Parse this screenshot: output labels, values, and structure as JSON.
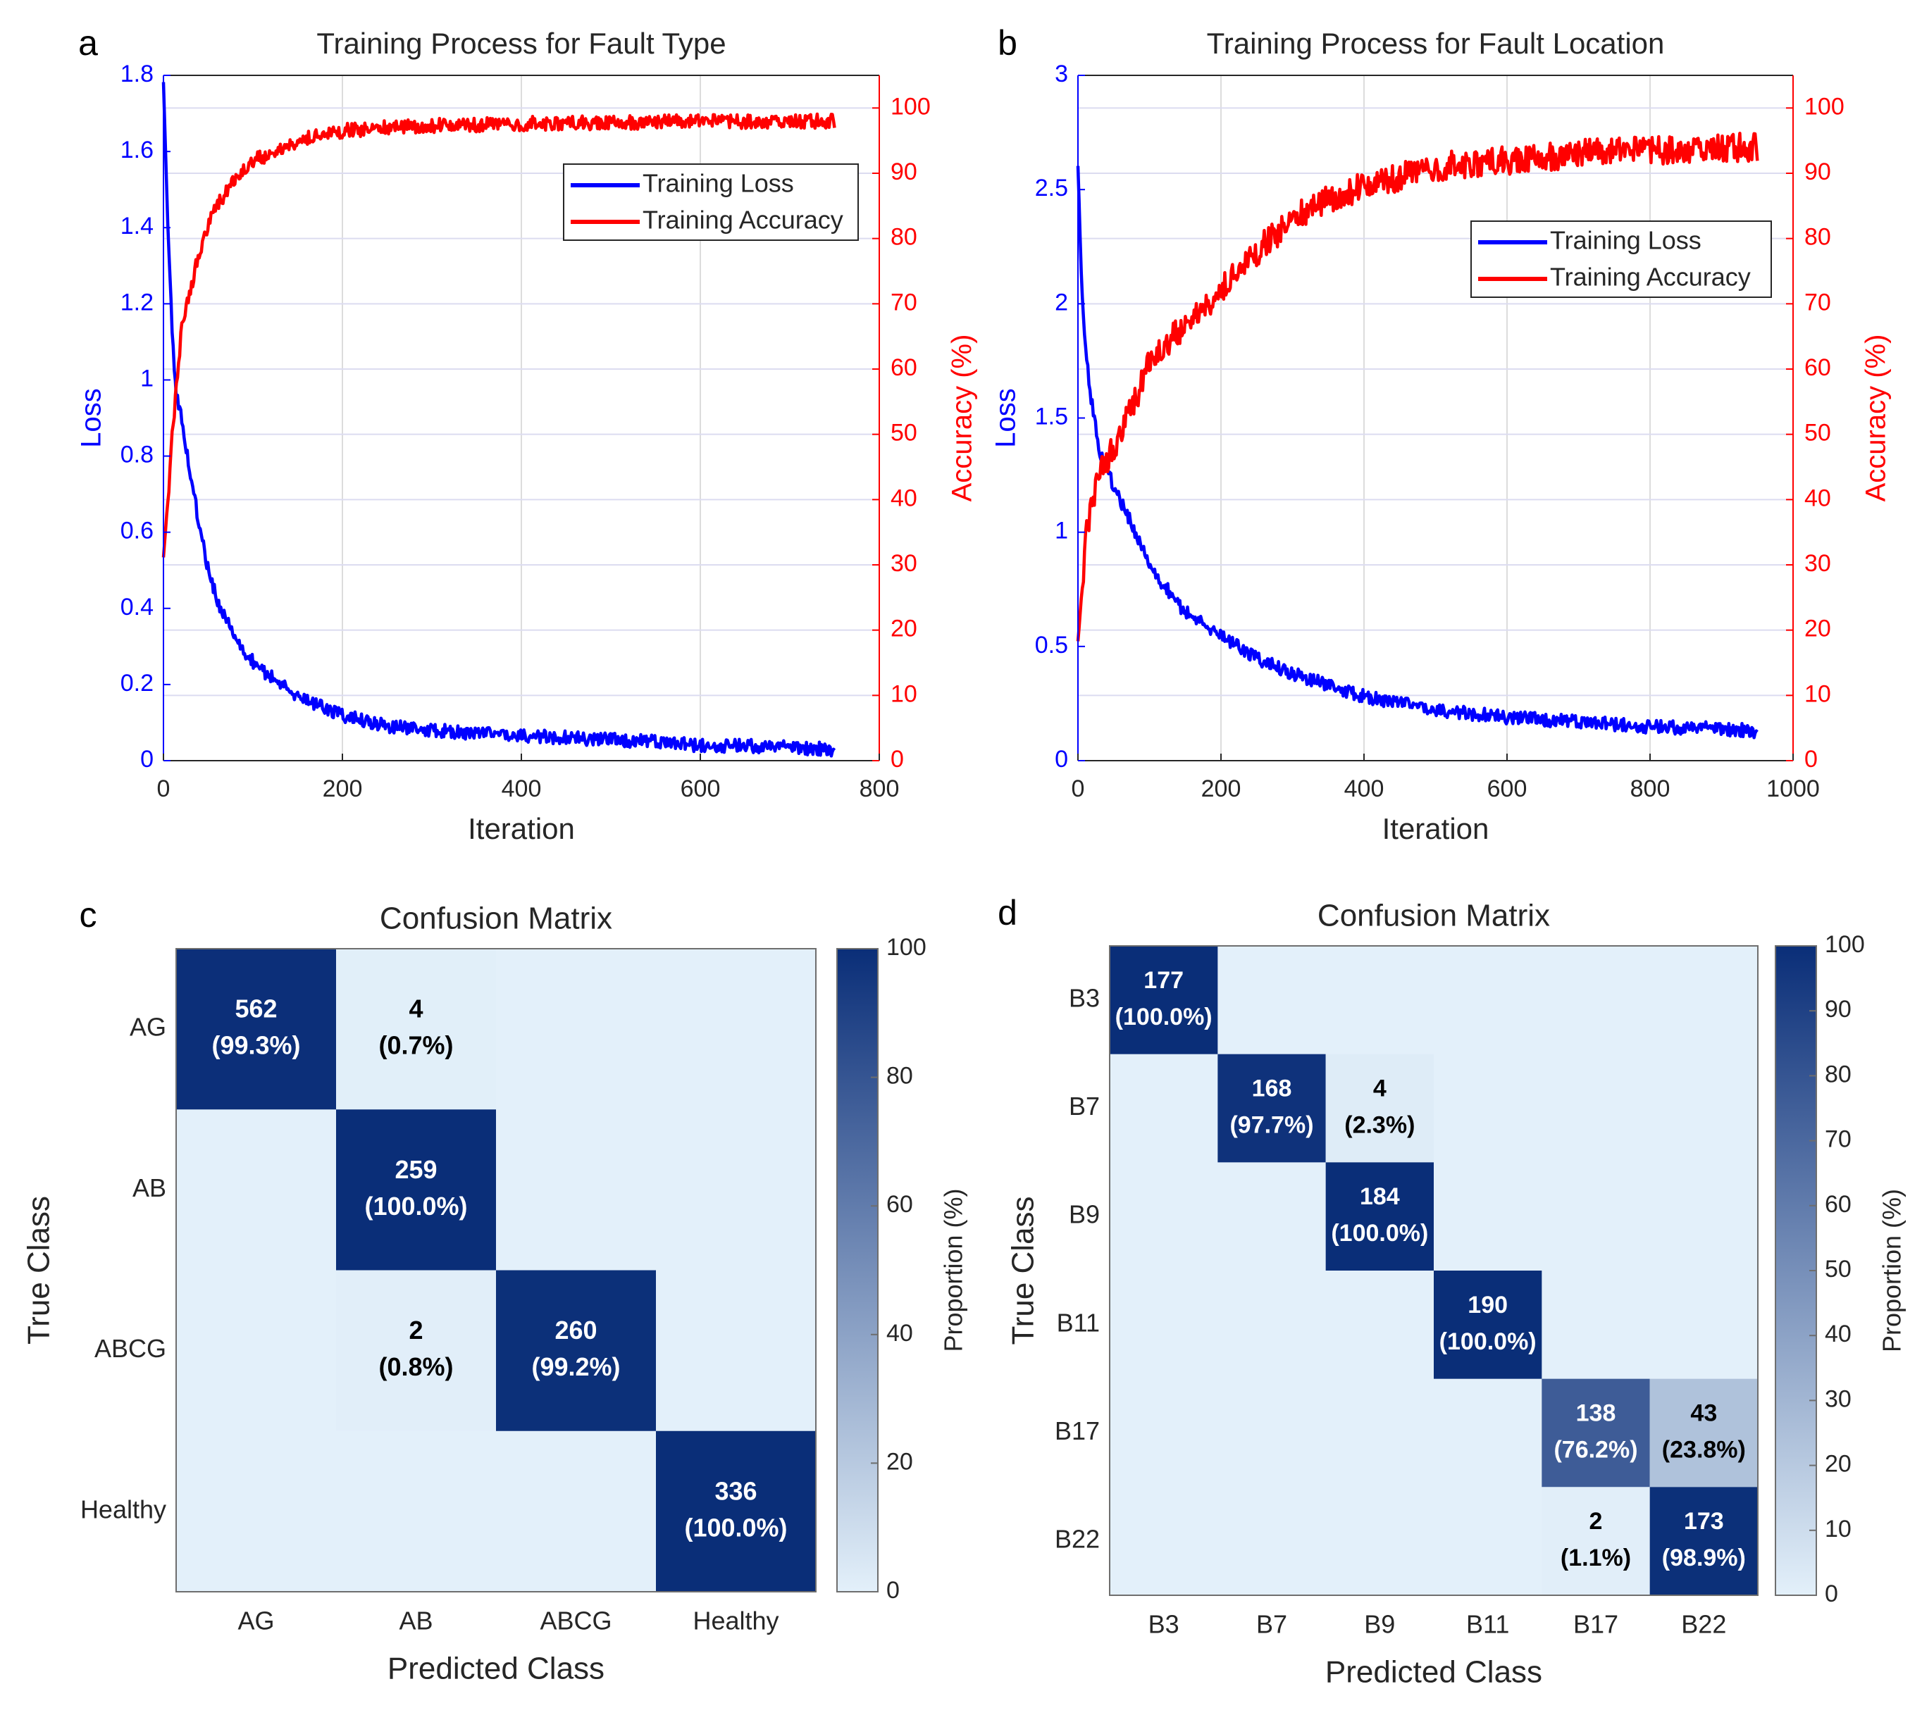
{
  "chart_data": [
    {
      "panel_label": "a",
      "type": "line",
      "title": "Training Process for Fault Type",
      "xlabel": "Iteration",
      "ylabel_left": "Loss",
      "ylabel_right": "Accuracy (%)",
      "xlim": [
        0,
        800
      ],
      "xticks": [
        0,
        200,
        400,
        600,
        800
      ],
      "ylim_left": [
        0,
        1.8
      ],
      "yticks_left": [
        0,
        0.2,
        0.4,
        0.6,
        0.8,
        1,
        1.2,
        1.4,
        1.6,
        1.8
      ],
      "ylim_right": [
        0,
        105
      ],
      "yticks_right": [
        0,
        10,
        20,
        30,
        40,
        50,
        60,
        70,
        80,
        90,
        100
      ],
      "legend_loc": "upper-right",
      "colors": {
        "loss": "#0000ff",
        "accuracy": "#ff0000",
        "left_axis": "#0000ff",
        "right_axis": "#ff0000"
      },
      "series": [
        {
          "name": "Training Loss",
          "axis": "left",
          "x": [
            0,
            5,
            10,
            15,
            20,
            30,
            40,
            50,
            60,
            80,
            100,
            120,
            150,
            200,
            250,
            300,
            350,
            400,
            450,
            500,
            550,
            600,
            650,
            700,
            750
          ],
          "values": [
            1.78,
            1.4,
            1.1,
            0.95,
            0.9,
            0.75,
            0.62,
            0.5,
            0.42,
            0.32,
            0.26,
            0.22,
            0.17,
            0.12,
            0.09,
            0.08,
            0.07,
            0.065,
            0.06,
            0.055,
            0.05,
            0.04,
            0.04,
            0.035,
            0.03
          ],
          "noise": 0.018
        },
        {
          "name": "Training Accuracy",
          "axis": "right",
          "x": [
            0,
            5,
            10,
            15,
            20,
            30,
            40,
            50,
            60,
            80,
            100,
            120,
            150,
            200,
            250,
            300,
            400,
            500,
            600,
            700,
            750
          ],
          "values": [
            31,
            40,
            50,
            58,
            66,
            72,
            78,
            82,
            85,
            89,
            92,
            93,
            95,
            96.5,
            97,
            97.3,
            97.6,
            97.8,
            97.9,
            98,
            98
          ],
          "noise": 1.1
        }
      ]
    },
    {
      "panel_label": "b",
      "type": "line",
      "title": "Training Process for Fault Location",
      "xlabel": "Iteration",
      "ylabel_left": "Loss",
      "ylabel_right": "Accuracy (%)",
      "xlim": [
        0,
        1000
      ],
      "xticks": [
        0,
        200,
        400,
        600,
        800,
        1000
      ],
      "ylim_left": [
        0,
        3
      ],
      "yticks_left": [
        0,
        0.5,
        1,
        1.5,
        2,
        2.5,
        3
      ],
      "ylim_right": [
        0,
        105
      ],
      "yticks_right": [
        0,
        10,
        20,
        30,
        40,
        50,
        60,
        70,
        80,
        90,
        100
      ],
      "legend_loc": "upper-right",
      "colors": {
        "loss": "#0000ff",
        "accuracy": "#ff0000",
        "left_axis": "#0000ff",
        "right_axis": "#ff0000"
      },
      "series": [
        {
          "name": "Training Loss",
          "axis": "left",
          "x": [
            0,
            5,
            10,
            20,
            30,
            50,
            80,
            100,
            150,
            200,
            250,
            300,
            400,
            500,
            600,
            700,
            800,
            900,
            950
          ],
          "values": [
            2.6,
            2.1,
            1.8,
            1.55,
            1.35,
            1.2,
            1.0,
            0.85,
            0.65,
            0.55,
            0.45,
            0.38,
            0.28,
            0.22,
            0.19,
            0.17,
            0.15,
            0.14,
            0.13
          ],
          "noise": 0.03
        },
        {
          "name": "Training Accuracy",
          "axis": "right",
          "x": [
            0,
            5,
            10,
            20,
            30,
            50,
            80,
            100,
            150,
            200,
            250,
            300,
            350,
            400,
            450,
            500,
            600,
            700,
            800,
            900,
            950
          ],
          "values": [
            18,
            25,
            33,
            40,
            44,
            48,
            55,
            61,
            67,
            72,
            78,
            83,
            86,
            88,
            89.5,
            91,
            92,
            93,
            93.5,
            94,
            94
          ],
          "noise": 2.2
        }
      ]
    },
    {
      "panel_label": "c",
      "type": "heatmap",
      "title": "Confusion Matrix",
      "xlabel": "Predicted Class",
      "ylabel": "True Class",
      "categories": [
        "AG",
        "AB",
        "ABCG",
        "Healthy"
      ],
      "colorbar": {
        "label": "Proportion (%)",
        "ticks": [
          0,
          20,
          40,
          60,
          80,
          100
        ],
        "range": [
          0,
          100
        ]
      },
      "cells": [
        {
          "row": 0,
          "col": 0,
          "count": "562",
          "pct_label": "(99.3%)",
          "pct": 99.3
        },
        {
          "row": 0,
          "col": 1,
          "count": "4",
          "pct_label": "(0.7%)",
          "pct": 0.7
        },
        {
          "row": 1,
          "col": 1,
          "count": "259",
          "pct_label": "(100.0%)",
          "pct": 100.0
        },
        {
          "row": 2,
          "col": 1,
          "count": "2",
          "pct_label": "(0.8%)",
          "pct": 0.8
        },
        {
          "row": 2,
          "col": 2,
          "count": "260",
          "pct_label": "(99.2%)",
          "pct": 99.2
        },
        {
          "row": 3,
          "col": 3,
          "count": "336",
          "pct_label": "(100.0%)",
          "pct": 100.0
        }
      ]
    },
    {
      "panel_label": "d",
      "type": "heatmap",
      "title": "Confusion Matrix",
      "xlabel": "Predicted Class",
      "ylabel": "True Class",
      "categories": [
        "B3",
        "B7",
        "B9",
        "B11",
        "B17",
        "B22"
      ],
      "colorbar": {
        "label": "Proportion (%)",
        "ticks": [
          0,
          10,
          20,
          30,
          40,
          50,
          60,
          70,
          80,
          90,
          100
        ],
        "range": [
          0,
          100
        ]
      },
      "cells": [
        {
          "row": 0,
          "col": 0,
          "count": "177",
          "pct_label": "(100.0%)",
          "pct": 100.0
        },
        {
          "row": 1,
          "col": 1,
          "count": "168",
          "pct_label": "(97.7%)",
          "pct": 97.7
        },
        {
          "row": 1,
          "col": 2,
          "count": "4",
          "pct_label": "(2.3%)",
          "pct": 2.3
        },
        {
          "row": 2,
          "col": 2,
          "count": "184",
          "pct_label": "(100.0%)",
          "pct": 100.0
        },
        {
          "row": 3,
          "col": 3,
          "count": "190",
          "pct_label": "(100.0%)",
          "pct": 100.0
        },
        {
          "row": 4,
          "col": 4,
          "count": "138",
          "pct_label": "(76.2%)",
          "pct": 76.2
        },
        {
          "row": 4,
          "col": 5,
          "count": "43",
          "pct_label": "(23.8%)",
          "pct": 23.8
        },
        {
          "row": 5,
          "col": 4,
          "count": "2",
          "pct_label": "(1.1%)",
          "pct": 1.1
        },
        {
          "row": 5,
          "col": 5,
          "count": "173",
          "pct_label": "(98.9%)",
          "pct": 98.9
        }
      ]
    }
  ]
}
